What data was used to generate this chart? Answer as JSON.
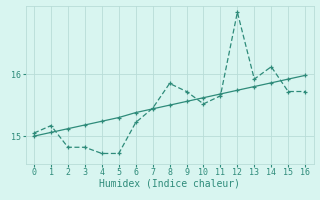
{
  "xlabel": "Humidex (Indice chaleur)",
  "ylabel": "",
  "xlim": [
    -0.5,
    16.5
  ],
  "ylim": [
    14.55,
    17.1
  ],
  "yticks": [
    15,
    16
  ],
  "xticks": [
    0,
    1,
    2,
    3,
    4,
    5,
    6,
    7,
    8,
    9,
    10,
    11,
    12,
    13,
    14,
    15,
    16
  ],
  "line1_x": [
    0,
    1,
    2,
    3,
    4,
    5,
    6,
    7,
    8,
    9,
    10,
    11,
    12,
    13,
    14,
    15,
    16
  ],
  "line1_y": [
    15.05,
    15.17,
    14.82,
    14.82,
    14.72,
    14.72,
    15.22,
    15.45,
    15.85,
    15.72,
    15.52,
    15.65,
    17.0,
    15.92,
    16.12,
    15.72,
    15.72
  ],
  "line2_x": [
    0,
    1,
    2,
    3,
    4,
    5,
    6,
    7,
    8,
    9,
    10,
    11,
    12,
    13,
    14,
    15,
    16
  ],
  "line2_y": [
    15.0,
    15.06,
    15.12,
    15.18,
    15.24,
    15.3,
    15.38,
    15.44,
    15.5,
    15.56,
    15.62,
    15.68,
    15.74,
    15.8,
    15.86,
    15.92,
    15.98
  ],
  "line_color": "#2e8b7a",
  "bg_color": "#d8f5f0",
  "grid_color": "#b8ddd8",
  "tick_fontsize": 6,
  "xlabel_fontsize": 7
}
